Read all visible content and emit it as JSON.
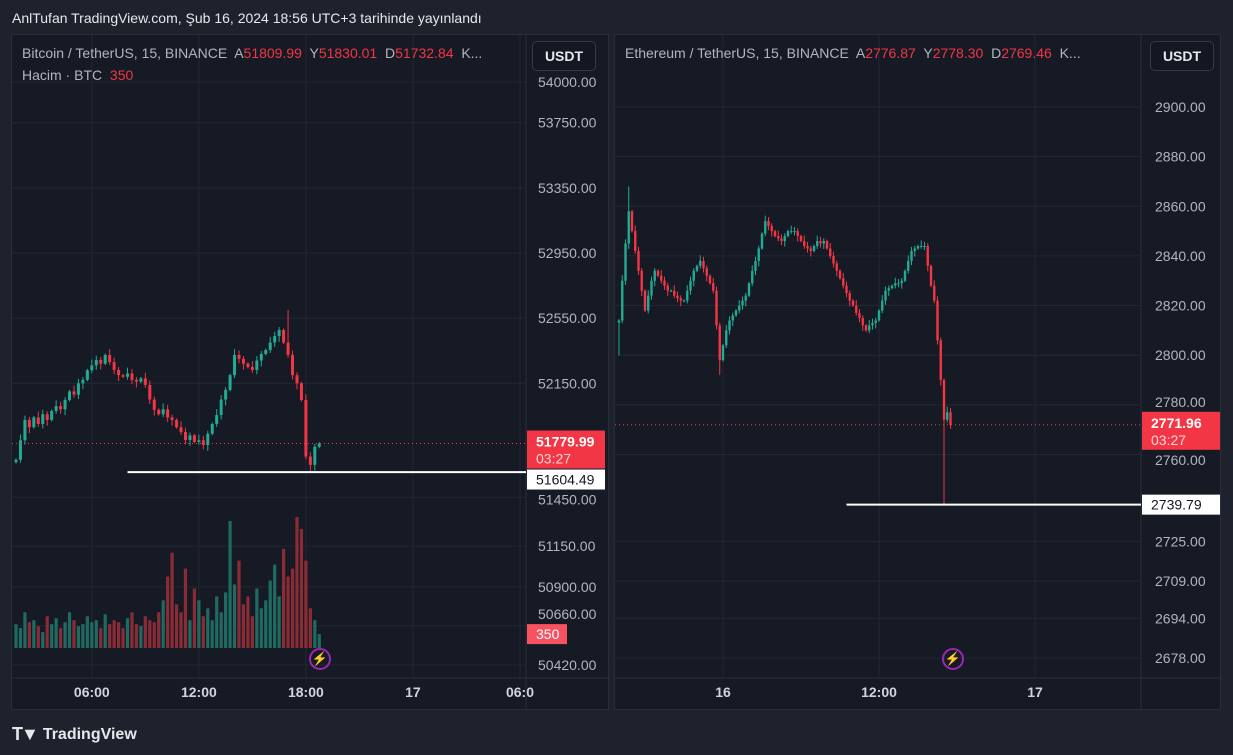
{
  "header": {
    "published": "AnlTufan TradingView.com, Şub 16, 2024 18:56 UTC+3 tarihinde yayınlandı"
  },
  "footer": {
    "brand": "TradingView"
  },
  "colors": {
    "up": "#22ab94",
    "down": "#f23645",
    "line": "#ffffff"
  },
  "chart_data": [
    {
      "type": "candlestick",
      "title": "Bitcoin / TetherUS, 15, BINANCE",
      "ohlc_labels": {
        "o_prefix": "A",
        "o": "51809.99",
        "h_prefix": "Y",
        "h": "51830.01",
        "l_prefix": "D",
        "l": "51732.84",
        "more": "K..."
      },
      "volume_label": "Hacim · BTC",
      "volume_value": "350",
      "currency": "USDT",
      "y_ticks": [
        "54000.00",
        "53750.00",
        "53350.00",
        "52950.00",
        "52550.00",
        "52150.00",
        "51450.00",
        "51150.00",
        "50900.00",
        "50660.00",
        "50420.00"
      ],
      "ylim": [
        50420,
        54000
      ],
      "x_ticks": [
        {
          "label": "06:00",
          "index": 17
        },
        {
          "label": "12:00",
          "index": 41
        },
        {
          "label": "18:00",
          "index": 65
        },
        {
          "label": "17",
          "index": 89
        },
        {
          "label": "06:0",
          "index": 113
        }
      ],
      "last_price": "51779.99",
      "countdown": "03:27",
      "horizontal_line": {
        "price": 51604.49,
        "label": "51604.49",
        "from_index": 25
      },
      "wick_extremes": [
        {
          "index": 61,
          "high": 52600
        },
        {
          "index": 66,
          "low": 51604.49
        }
      ],
      "closes": [
        51680,
        51800,
        51925,
        51880,
        51940,
        51900,
        51960,
        51925,
        51980,
        52010,
        51990,
        52047,
        52100,
        52080,
        52150,
        52171,
        52230,
        52260,
        52293,
        52270,
        52324,
        52280,
        52232,
        52200,
        52190,
        52210,
        52171,
        52160,
        52180,
        52140,
        52050,
        51987,
        51960,
        51990,
        51940,
        51925,
        51880,
        51850,
        51802,
        51830,
        51790,
        51800,
        51771,
        51840,
        51900,
        51955,
        52050,
        52109,
        52200,
        52324,
        52300,
        52270,
        52250,
        52232,
        52290,
        52330,
        52354,
        52400,
        52440,
        52477,
        52400,
        52324,
        52200,
        52150,
        52047,
        51700,
        51649,
        51760,
        51780
      ],
      "volumes": [
        600,
        500,
        900,
        650,
        700,
        550,
        400,
        800,
        600,
        750,
        500,
        650,
        900,
        700,
        550,
        600,
        800,
        650,
        700,
        500,
        850,
        600,
        700,
        650,
        500,
        750,
        900,
        600,
        550,
        800,
        700,
        650,
        900,
        1200,
        1800,
        2400,
        1100,
        900,
        2000,
        700,
        1500,
        1200,
        800,
        1000,
        700,
        1300,
        900,
        1400,
        3200,
        1600,
        2200,
        1100,
        1300,
        800,
        1500,
        1000,
        1200,
        1700,
        2100,
        1300,
        2500,
        1800,
        2000,
        3300,
        3000,
        2200,
        1000,
        700,
        350
      ]
    },
    {
      "type": "candlestick",
      "title": "Ethereum / TetherUS, 15, BINANCE",
      "ohlc_labels": {
        "o_prefix": "A",
        "o": "2776.87",
        "h_prefix": "Y",
        "h": "2778.30",
        "l_prefix": "D",
        "l": "2769.46",
        "more": "K..."
      },
      "currency": "USDT",
      "y_ticks": [
        "2900.00",
        "2880.00",
        "2860.00",
        "2840.00",
        "2820.00",
        "2800.00",
        "2780.00",
        "2760.00",
        "2725.00",
        "2709.00",
        "2694.00",
        "2678.00"
      ],
      "ylim": [
        2678,
        2900
      ],
      "x_ticks": [
        {
          "label": "16",
          "index": 32
        },
        {
          "label": "12:00",
          "index": 80
        },
        {
          "label": "17",
          "index": 128
        }
      ],
      "last_price": "2771.96",
      "countdown": "03:27",
      "horizontal_line": {
        "price": 2739.79,
        "label": "2739.79",
        "from_index": 70
      },
      "wick_extremes": [
        {
          "index": 3,
          "high": 2868
        },
        {
          "index": 100,
          "low": 2739.79
        },
        {
          "index": 0,
          "low": 2800
        },
        {
          "index": 31,
          "low": 2792
        }
      ],
      "closes": [
        2814,
        2830,
        2845,
        2858,
        2850,
        2842,
        2834,
        2826,
        2818,
        2824,
        2830,
        2834,
        2832,
        2830,
        2828,
        2826,
        2826,
        2824,
        2823,
        2822,
        2822,
        2826,
        2830,
        2834,
        2836,
        2838,
        2835,
        2832,
        2829,
        2826,
        2812,
        2798,
        2804,
        2810,
        2814,
        2816,
        2818,
        2820,
        2822,
        2824,
        2829,
        2834,
        2838,
        2843,
        2849,
        2854,
        2852,
        2850,
        2848,
        2847,
        2846,
        2848,
        2850,
        2850,
        2850,
        2848,
        2846,
        2844,
        2843,
        2842,
        2844,
        2846,
        2845,
        2846,
        2843,
        2840,
        2837,
        2834,
        2831,
        2828,
        2825,
        2822,
        2820,
        2817,
        2815,
        2812,
        2810,
        2812,
        2813,
        2814,
        2818,
        2822,
        2826,
        2827,
        2828,
        2829,
        2829,
        2830,
        2834,
        2838,
        2842,
        2843,
        2844,
        2844,
        2844,
        2836,
        2828,
        2822,
        2806,
        2790,
        2774,
        2777,
        2772
      ]
    }
  ]
}
